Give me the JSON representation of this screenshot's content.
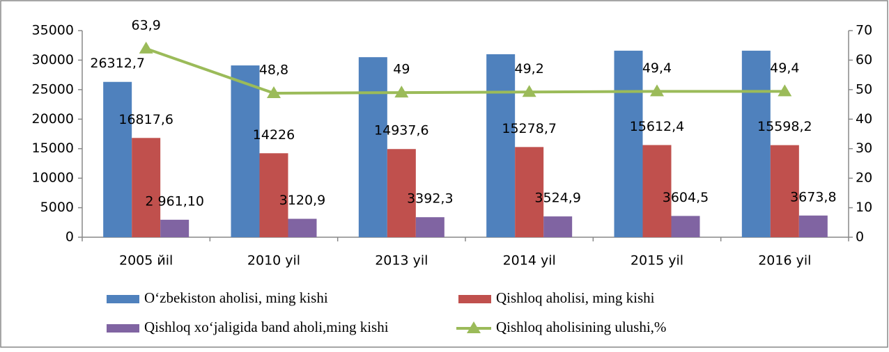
{
  "chart_data": {
    "type": "bar_line",
    "categories": [
      "2005 йil",
      "2010 yil",
      "2013 yil",
      "2014 yil",
      "2015 yil",
      "2016 yil"
    ],
    "series": [
      {
        "name": "O‘zbekiston aholisi, ming kishi",
        "color": "#4f81bd",
        "values": [
          26312.7,
          29100,
          30500,
          31000,
          31600,
          31600
        ],
        "value_labels": [
          "26312,7",
          null,
          null,
          null,
          null,
          null
        ]
      },
      {
        "name": "Qishloq aholisi, ming kishi",
        "color": "#c0504d",
        "values": [
          16817.6,
          14226,
          14937.6,
          15278.7,
          15612.4,
          15598.2
        ],
        "value_labels": [
          "16817,6",
          "14226",
          "14937,6",
          "15278,7",
          "15612,4",
          "15598,2"
        ]
      },
      {
        "name": "Qishloq xo‘jaligida band aholi,ming kishi",
        "color": "#8064a2",
        "values": [
          2961.1,
          3120.9,
          3392.3,
          3524.9,
          3604.5,
          3673.8
        ],
        "value_labels": [
          "2 961,10",
          "3120,9",
          "3392,3",
          "3524,9",
          "3604,5",
          "3673,8"
        ]
      },
      {
        "name": "Qishloq aholisining ulushi,%",
        "color": "#9bbb59",
        "type": "line",
        "axis": "y2",
        "values": [
          63.9,
          48.8,
          49,
          49.2,
          49.4,
          49.4
        ],
        "value_labels": [
          "63,9",
          "48,8",
          "49",
          "49,2",
          "49,4",
          "49,4"
        ]
      }
    ],
    "ylim": [
      0,
      35000
    ],
    "yticks": [
      0,
      5000,
      10000,
      15000,
      20000,
      25000,
      30000,
      35000
    ],
    "y2lim": [
      0,
      70
    ],
    "y2ticks": [
      0,
      10,
      20,
      30,
      40,
      50,
      60,
      70
    ],
    "legend": "bottom"
  }
}
